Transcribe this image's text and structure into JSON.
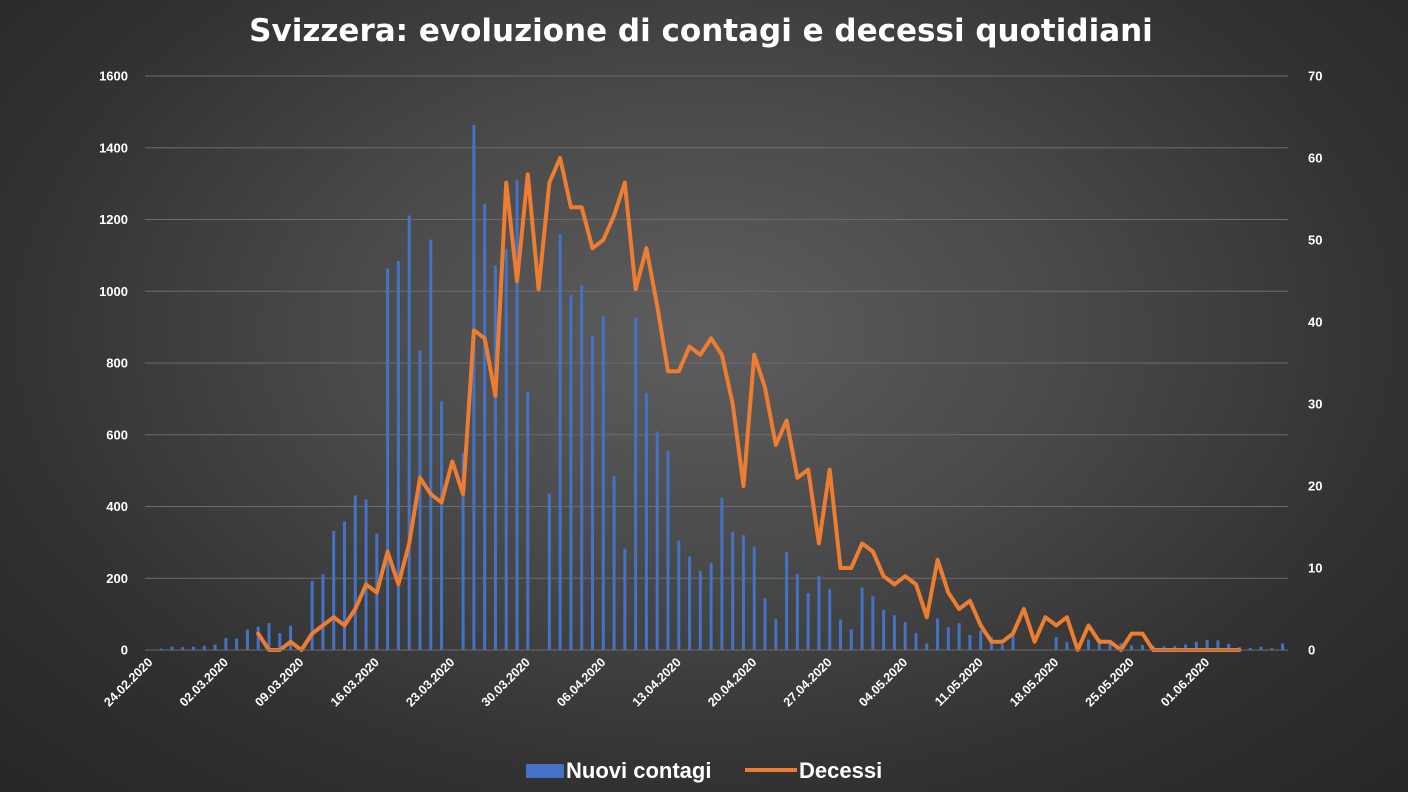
{
  "colors": {
    "bars": "#4472c4",
    "line": "#ed7d31",
    "text": "#ffffff",
    "grid": "#6c6c6c"
  },
  "chart_data": {
    "type": "bar",
    "title": "Svizzera: evoluzione di contagi e decessi quotidiani",
    "grid": true,
    "legend_position": "bottom",
    "y_left": {
      "min": 0,
      "max": 1600,
      "ticks": [
        "0",
        "200",
        "400",
        "600",
        "800",
        "1000",
        "1200",
        "1400",
        "1600"
      ]
    },
    "y_right": {
      "min": 0,
      "max": 70,
      "ticks": [
        "0",
        "10",
        "20",
        "30",
        "40",
        "50",
        "60",
        "70"
      ]
    },
    "x_tick_labels": [
      "24.02.2020",
      "02.03.2020",
      "09.03.2020",
      "16.03.2020",
      "23.03.2020",
      "30.03.2020",
      "06.04.2020",
      "13.04.2020",
      "20.04.2020",
      "27.04.2020",
      "04.05.2020",
      "11.05.2020",
      "18.05.2020",
      "25.05.2020",
      "01.06.2020"
    ],
    "start_date": "24.02.2020",
    "series": [
      {
        "name": "Nuovi contagi",
        "type": "bar",
        "axis": "left",
        "values": [
          1,
          4,
          9,
          8,
          9,
          12,
          15,
          33,
          32,
          57,
          65,
          75,
          47,
          68,
          0,
          193,
          211,
          332,
          358,
          431,
          420,
          324,
          1063,
          1084,
          1211,
          835,
          1144,
          693,
          0,
          549,
          1463,
          1244,
          1072,
          1117,
          1310,
          720,
          0,
          436,
          1159,
          990,
          1017,
          877,
          930,
          485,
          282,
          926,
          717,
          609,
          555,
          305,
          261,
          221,
          243,
          424,
          329,
          320,
          288,
          144,
          86,
          273,
          212,
          159,
          207,
          169,
          85,
          58,
          174,
          150,
          112,
          97,
          78,
          47,
          18,
          88,
          64,
          75,
          42,
          54,
          37,
          16,
          47,
          0,
          0,
          0,
          36,
          22,
          18,
          29,
          32,
          24,
          19,
          13,
          14,
          12,
          10,
          11,
          15,
          23,
          28,
          27,
          17,
          8,
          6,
          9,
          5,
          18
        ]
      },
      {
        "name": "Decessi",
        "type": "line",
        "axis": "right",
        "start_index": 10,
        "values": [
          2,
          0,
          0,
          1,
          0,
          2,
          3,
          4,
          3,
          5,
          8,
          7,
          12,
          8,
          13,
          21,
          19,
          18,
          23,
          19,
          39,
          38,
          31,
          57,
          45,
          58,
          44,
          57,
          60,
          54,
          54,
          49,
          50,
          53,
          57,
          44,
          49,
          42,
          34,
          34,
          37,
          36,
          38,
          36,
          30,
          20,
          36,
          32,
          25,
          28,
          21,
          22,
          13,
          22,
          10,
          10,
          13,
          12,
          9,
          8,
          9,
          8,
          4,
          11,
          7,
          5,
          6,
          3,
          1,
          1,
          2,
          5,
          1,
          4,
          3,
          4,
          0,
          3,
          1,
          1,
          0,
          2,
          2,
          0,
          0,
          0,
          0,
          0,
          0,
          0,
          0,
          0
        ]
      }
    ]
  }
}
